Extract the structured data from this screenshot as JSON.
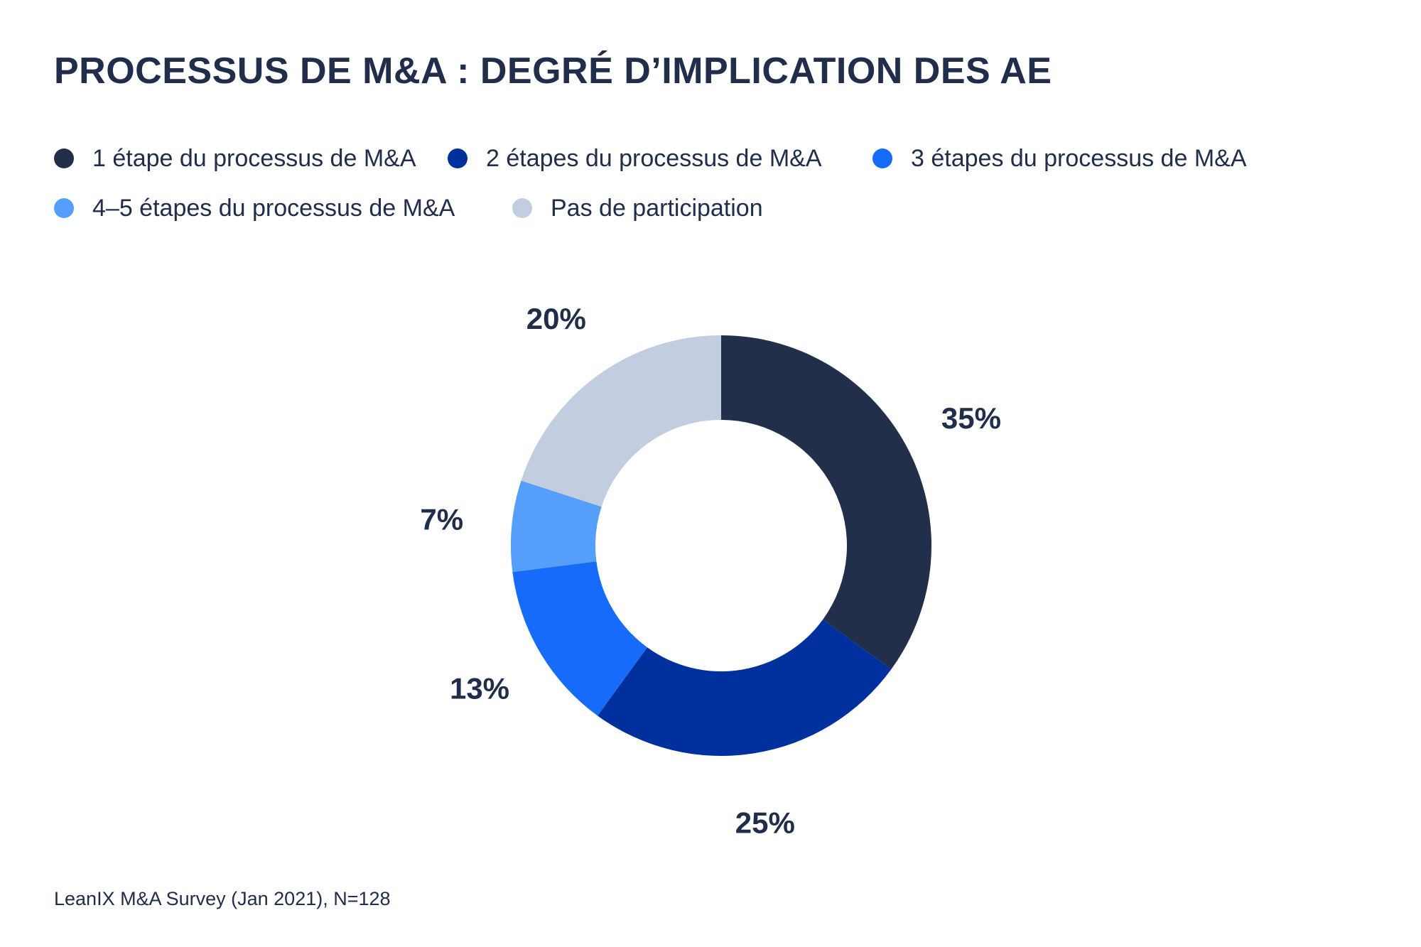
{
  "chart_data": {
    "type": "pie",
    "title": "PROCESSUS DE M&A : DEGRÉ D’IMPLICATION DES AE",
    "categories": [
      "1 étape du processus de M&A",
      "2 étapes du processus de M&A",
      "3 étapes du processus de M&A",
      "4–5 étapes du processus de M&A",
      "Pas de participation"
    ],
    "values": [
      35,
      25,
      13,
      7,
      20
    ],
    "value_labels": [
      "35%",
      "25%",
      "13%",
      "7%",
      "20%"
    ],
    "colors": [
      "#222f4a",
      "#00309e",
      "#176bfb",
      "#559ffb",
      "#c2cddf"
    ],
    "donut": true,
    "legend_position": "top-left",
    "source": "LeanIX M&A Survey (Jan 2021), N=128"
  }
}
